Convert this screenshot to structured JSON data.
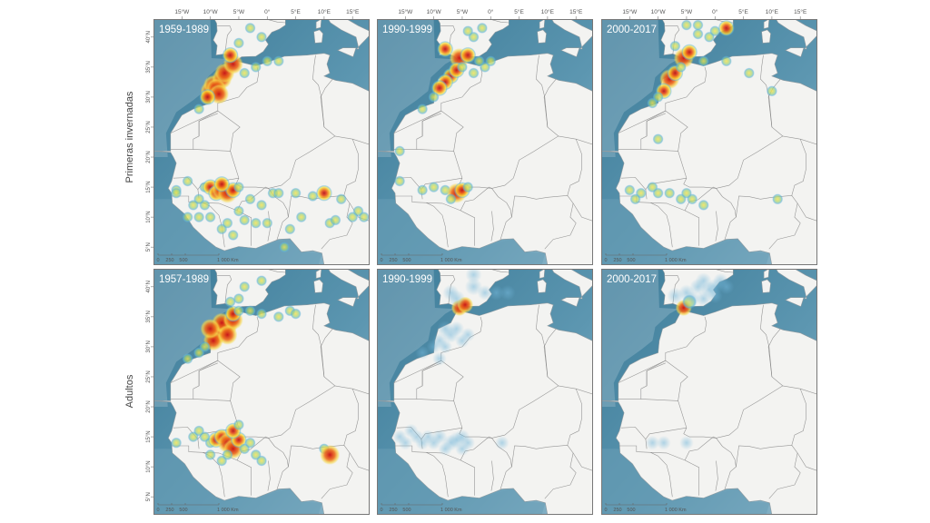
{
  "row_labels": [
    "Primeras invernadas",
    "Adultos"
  ],
  "lon_ticks": [
    "15°W",
    "10°W",
    "5°W",
    "0°",
    "5°E",
    "10°E",
    "15°E"
  ],
  "lat_ticks": [
    "40°N",
    "35°N",
    "30°N",
    "25°N",
    "20°N",
    "15°N",
    "10°N",
    "5°N"
  ],
  "scale_bar": {
    "labels": [
      "0",
      "250",
      "500",
      "1 000 Km"
    ]
  },
  "colors": {
    "ocean": "#4b88a4",
    "ocean_shallow": "#a9c7d4",
    "land": "#f3f3f1",
    "border": "#777777",
    "hot": "#c8171a",
    "warm": "#f3a21b",
    "mid": "#f6e34a",
    "cool": "#63b8d8"
  },
  "panels": [
    {
      "row": 0,
      "col": 0,
      "label": "1959-1989",
      "style": "heat",
      "points": [
        [
          -10,
          31,
          1
        ],
        [
          -9.5,
          32,
          1
        ],
        [
          -8,
          33,
          1
        ],
        [
          -9,
          31.5,
          1
        ],
        [
          -7.5,
          34,
          1
        ],
        [
          -8.5,
          30.5,
          1
        ],
        [
          -6,
          35.5,
          1
        ],
        [
          -10.5,
          30,
          0.8
        ],
        [
          -6.5,
          37,
          0.8
        ],
        [
          -5,
          39,
          0.6
        ],
        [
          -3,
          41.5,
          0.5
        ],
        [
          -1,
          40,
          0.5
        ],
        [
          -2,
          35,
          0.5
        ],
        [
          0,
          36,
          0.5
        ],
        [
          2,
          36,
          0.5
        ],
        [
          -4,
          34,
          0.6
        ],
        [
          -12,
          28,
          0.4
        ],
        [
          -14,
          16,
          0.5
        ],
        [
          -16,
          14.5,
          0.4
        ],
        [
          -11,
          15,
          0.6
        ],
        [
          -10,
          15,
          0.8
        ],
        [
          -9,
          14,
          0.7
        ],
        [
          -8,
          14.5,
          0.9
        ],
        [
          -7,
          14,
          1
        ],
        [
          -6,
          14.5,
          0.7
        ],
        [
          -5,
          15,
          0.6
        ],
        [
          -8,
          15.5,
          0.7
        ],
        [
          -11,
          12,
          0.4
        ],
        [
          -12,
          13,
          0.4
        ],
        [
          -13,
          12,
          0.4
        ],
        [
          -3,
          13,
          0.4
        ],
        [
          -1,
          12,
          0.4
        ],
        [
          -5,
          11,
          0.4
        ],
        [
          1,
          14,
          0.5
        ],
        [
          2,
          14,
          0.5
        ],
        [
          5,
          14,
          0.5
        ],
        [
          8,
          13.5,
          0.6
        ],
        [
          10,
          14,
          0.7
        ],
        [
          13,
          13,
          0.5
        ],
        [
          11,
          9,
          0.4
        ],
        [
          12,
          9.5,
          0.4
        ],
        [
          6,
          10,
          0.4
        ],
        [
          15,
          10,
          0.5
        ],
        [
          16,
          11,
          0.5
        ],
        [
          17,
          10,
          0.4
        ],
        [
          4,
          8,
          0.4
        ],
        [
          -2,
          9,
          0.4
        ],
        [
          0,
          9,
          0.4
        ],
        [
          -6,
          7,
          0.4
        ],
        [
          -8,
          8,
          0.4
        ],
        [
          3,
          5,
          0.4
        ],
        [
          -12,
          10,
          0.4
        ],
        [
          -14,
          10,
          0.4
        ],
        [
          -16,
          14,
          0.4
        ],
        [
          -10,
          10,
          0.4
        ],
        [
          -7,
          9,
          0.4
        ],
        [
          -4,
          9.5,
          0.4
        ]
      ]
    },
    {
      "row": 0,
      "col": 1,
      "label": "1990-1999",
      "style": "heat",
      "points": [
        [
          -8,
          38,
          0.8
        ],
        [
          -5.5,
          36.5,
          1
        ],
        [
          -4,
          37,
          0.7
        ],
        [
          -3,
          40,
          0.6
        ],
        [
          -1.5,
          41.5,
          0.6
        ],
        [
          -4,
          41,
          0.5
        ],
        [
          -7,
          33.5,
          0.8
        ],
        [
          -8,
          32.5,
          0.8
        ],
        [
          -9,
          31.5,
          0.7
        ],
        [
          -10,
          30,
          0.6
        ],
        [
          -12,
          28,
          0.5
        ],
        [
          -6,
          34.5,
          0.7
        ],
        [
          -5,
          35,
          0.6
        ],
        [
          -3,
          34,
          0.5
        ],
        [
          -1,
          35,
          0.6
        ],
        [
          0,
          36,
          0.5
        ],
        [
          -2,
          36,
          0.6
        ],
        [
          -16,
          21,
          0.4
        ],
        [
          -16,
          16,
          0.4
        ],
        [
          -12,
          14.5,
          0.5
        ],
        [
          -10,
          15,
          0.5
        ],
        [
          -8,
          14.5,
          0.6
        ],
        [
          -6,
          14,
          1
        ],
        [
          -5,
          14.5,
          0.8
        ],
        [
          -7,
          13,
          0.6
        ],
        [
          -4,
          15,
          0.5
        ]
      ]
    },
    {
      "row": 0,
      "col": 2,
      "label": "2000-2017",
      "style": "heat",
      "points": [
        [
          -7,
          38.5,
          0.6
        ],
        [
          -5.5,
          36.5,
          1
        ],
        [
          -4.5,
          37.5,
          0.8
        ],
        [
          -3,
          40.5,
          0.6
        ],
        [
          -1,
          40,
          0.6
        ],
        [
          0,
          41,
          0.5
        ],
        [
          -3,
          42,
          0.6
        ],
        [
          -5,
          42,
          0.6
        ],
        [
          2,
          41.5,
          0.8
        ],
        [
          -8,
          33,
          0.9
        ],
        [
          -7,
          34,
          0.8
        ],
        [
          -9,
          31,
          0.7
        ],
        [
          -10,
          30,
          0.6
        ],
        [
          -11,
          29,
          0.5
        ],
        [
          -6,
          35,
          0.6
        ],
        [
          -2,
          36,
          0.5
        ],
        [
          2,
          36,
          0.5
        ],
        [
          6,
          34,
          0.5
        ],
        [
          10,
          31,
          0.5
        ],
        [
          -10,
          23,
          0.4
        ],
        [
          -15,
          14.5,
          0.4
        ],
        [
          -11,
          15,
          0.5
        ],
        [
          -10,
          14,
          0.5
        ],
        [
          -8,
          14,
          0.5
        ],
        [
          -6,
          13,
          0.5
        ],
        [
          -4,
          13,
          0.4
        ],
        [
          -13,
          14,
          0.4
        ],
        [
          -5,
          14,
          0.4
        ],
        [
          -2,
          12,
          0.4
        ],
        [
          11,
          13,
          0.4
        ],
        [
          -14,
          13,
          0.4
        ]
      ]
    },
    {
      "row": 1,
      "col": 0,
      "label": "1957-1989",
      "style": "heat",
      "points": [
        [
          -8,
          33,
          1
        ],
        [
          -9,
          32,
          1
        ],
        [
          -7,
          33.5,
          1
        ],
        [
          -8,
          34,
          1
        ],
        [
          -9.5,
          31,
          1
        ],
        [
          -6,
          34.5,
          0.9
        ],
        [
          -7,
          32,
          0.9
        ],
        [
          -10,
          33,
          0.9
        ],
        [
          -6,
          35.5,
          0.8
        ],
        [
          -5,
          36,
          0.6
        ],
        [
          -3,
          36,
          0.5
        ],
        [
          -1,
          35.5,
          0.5
        ],
        [
          -6.5,
          37.5,
          0.6
        ],
        [
          -4,
          40,
          0.5
        ],
        [
          -1,
          41,
          0.4
        ],
        [
          -5,
          38,
          0.5
        ],
        [
          2,
          35,
          0.5
        ],
        [
          4,
          36,
          0.5
        ],
        [
          5,
          35.5,
          0.5
        ],
        [
          -11,
          30,
          0.6
        ],
        [
          -12,
          29,
          0.5
        ],
        [
          -14,
          28,
          0.4
        ],
        [
          -13,
          15,
          0.5
        ],
        [
          -11,
          15,
          0.5
        ],
        [
          -10,
          14,
          0.6
        ],
        [
          -9,
          14.5,
          0.8
        ],
        [
          -8,
          15,
          0.8
        ],
        [
          -7,
          14,
          0.9
        ],
        [
          -6,
          13,
          0.9
        ],
        [
          -5,
          14.5,
          0.7
        ],
        [
          -6,
          16,
          0.7
        ],
        [
          -5,
          17,
          0.5
        ],
        [
          -4,
          13,
          0.5
        ],
        [
          -3,
          14,
          0.4
        ],
        [
          -2,
          12,
          0.4
        ],
        [
          -1,
          11,
          0.4
        ],
        [
          -8,
          11,
          0.4
        ],
        [
          -7,
          12,
          0.5
        ],
        [
          -10,
          12,
          0.4
        ],
        [
          10,
          13,
          0.5
        ],
        [
          11,
          12,
          0.9
        ],
        [
          -16,
          14,
          0.4
        ],
        [
          -12,
          16,
          0.4
        ]
      ]
    },
    {
      "row": 1,
      "col": 1,
      "label": "1990-1999",
      "style": "diffuse",
      "points": [
        [
          -5.5,
          36.5,
          1
        ],
        [
          -4.5,
          37,
          0.9
        ],
        [
          -6,
          38,
          0.6
        ],
        [
          -7,
          39,
          0.5
        ],
        [
          -3,
          40,
          0.6
        ],
        [
          -3,
          42,
          0.5
        ],
        [
          -1,
          39,
          0.4
        ],
        [
          1,
          39,
          0.4
        ],
        [
          3,
          39,
          0.4
        ],
        [
          -8,
          33,
          0.5
        ],
        [
          -7,
          32,
          0.5
        ],
        [
          -9,
          31,
          0.4
        ],
        [
          -6,
          33,
          0.4
        ],
        [
          -5,
          31,
          0.3
        ],
        [
          -4,
          32,
          0.3
        ],
        [
          -8,
          30,
          0.3
        ],
        [
          -10,
          30,
          0.3
        ],
        [
          -12,
          29,
          0.3
        ],
        [
          -9,
          28,
          0.3
        ],
        [
          -16,
          15,
          0.3
        ],
        [
          -13,
          15,
          0.3
        ],
        [
          -11,
          15,
          0.3
        ],
        [
          -9,
          15,
          0.4
        ],
        [
          -7,
          14,
          0.5
        ],
        [
          -6,
          14.5,
          0.5
        ],
        [
          -5,
          15,
          0.4
        ],
        [
          -4,
          14,
          0.3
        ],
        [
          -8,
          13,
          0.3
        ],
        [
          -12,
          14,
          0.3
        ],
        [
          -10,
          14,
          0.3
        ],
        [
          -5,
          13,
          0.3
        ],
        [
          2,
          14,
          0.3
        ],
        [
          -15,
          14,
          0.3
        ],
        [
          -14,
          16,
          0.3
        ]
      ]
    },
    {
      "row": 1,
      "col": 2,
      "label": "2000-2017",
      "style": "diffuse",
      "points": [
        [
          -5.5,
          36.5,
          1
        ],
        [
          -4.5,
          37.5,
          0.8
        ],
        [
          -7,
          38.5,
          0.5
        ],
        [
          -5,
          39,
          0.5
        ],
        [
          -3,
          40,
          0.5
        ],
        [
          -2,
          41,
          0.5
        ],
        [
          -1,
          39.5,
          0.5
        ],
        [
          0,
          40,
          0.5
        ],
        [
          -4,
          38,
          0.4
        ],
        [
          1,
          41,
          0.4
        ],
        [
          0,
          38.5,
          0.4
        ],
        [
          -2,
          38,
          0.4
        ],
        [
          2,
          40,
          0.4
        ],
        [
          -9,
          14,
          0.3
        ],
        [
          -11,
          14,
          0.3
        ],
        [
          -5,
          14,
          0.3
        ]
      ]
    }
  ]
}
